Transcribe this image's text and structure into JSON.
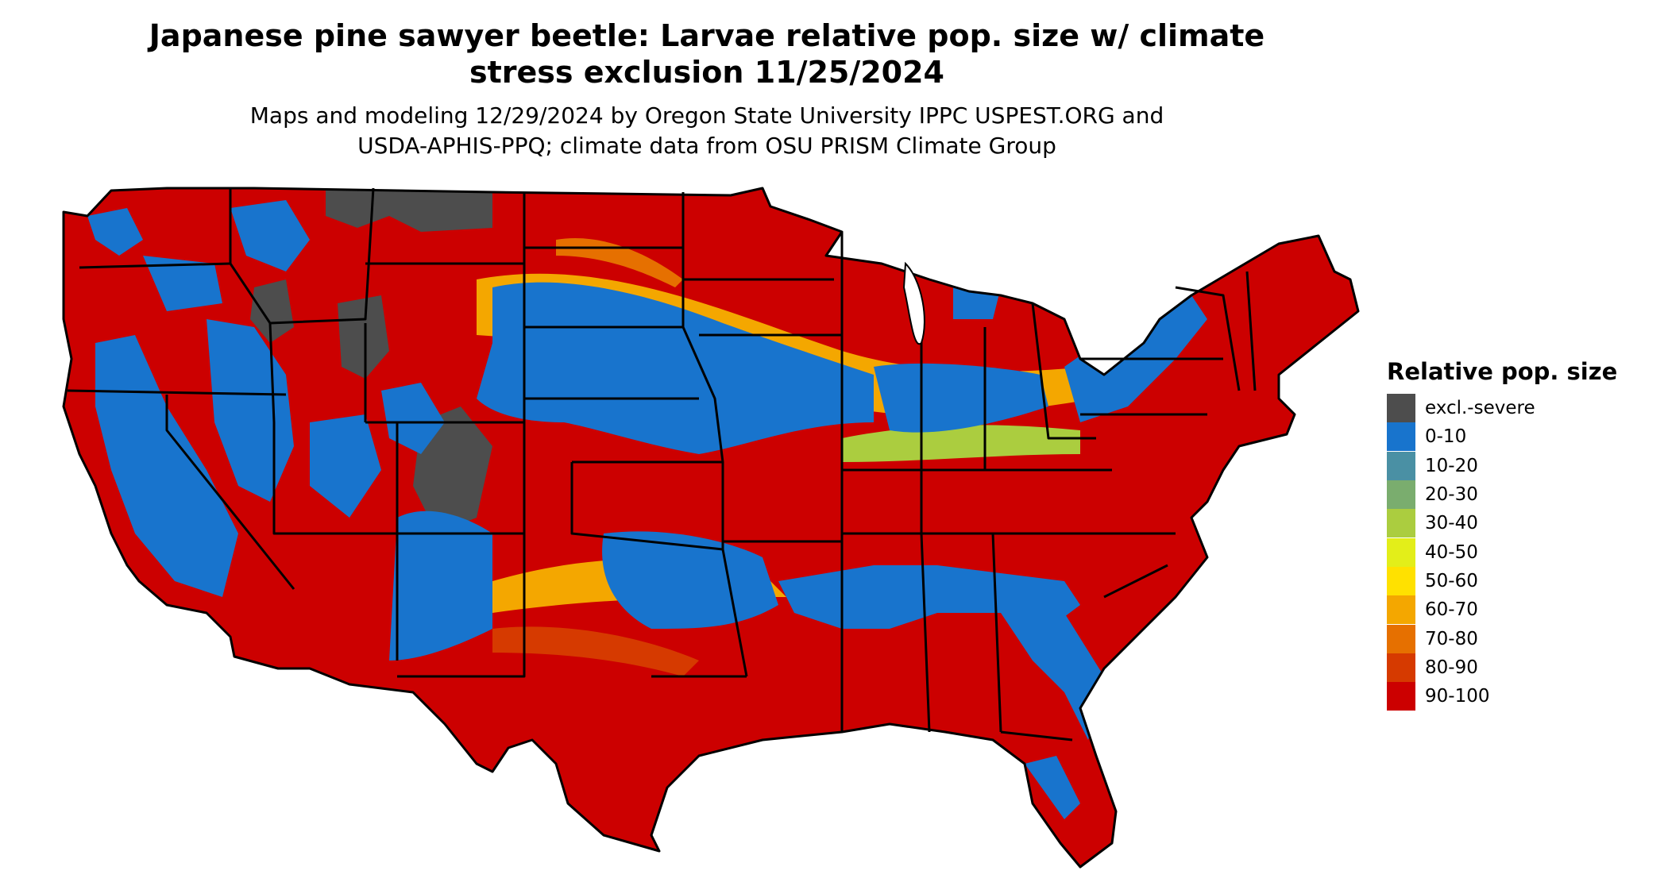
{
  "title": {
    "line1": "Japanese pine sawyer beetle: Larvae relative pop. size w/ climate",
    "line2": "stress exclusion 11/25/2024"
  },
  "subtitle": {
    "line1": "Maps and modeling 12/29/2024 by Oregon State University IPPC USPEST.ORG and",
    "line2": "USDA-APHIS-PPQ; climate data from OSU PRISM Climate Group"
  },
  "legend": {
    "title": "Relative pop. size",
    "items": [
      {
        "label": "excl.-severe",
        "color": "#4d4d4d"
      },
      {
        "label": "0-10",
        "color": "#1874cd"
      },
      {
        "label": "10-20",
        "color": "#4a90a4"
      },
      {
        "label": "20-30",
        "color": "#7aad6e"
      },
      {
        "label": "30-40",
        "color": "#abcd3f"
      },
      {
        "label": "40-50",
        "color": "#e3ee19"
      },
      {
        "label": "50-60",
        "color": "#ffe100"
      },
      {
        "label": "60-70",
        "color": "#f4a700"
      },
      {
        "label": "70-80",
        "color": "#e67000"
      },
      {
        "label": "80-90",
        "color": "#d63a00"
      },
      {
        "label": "90-100",
        "color": "#cc0000"
      }
    ]
  },
  "map": {
    "region": "contiguous-united-states",
    "state_borders_color": "#000000",
    "background_color": "#ffffff"
  }
}
